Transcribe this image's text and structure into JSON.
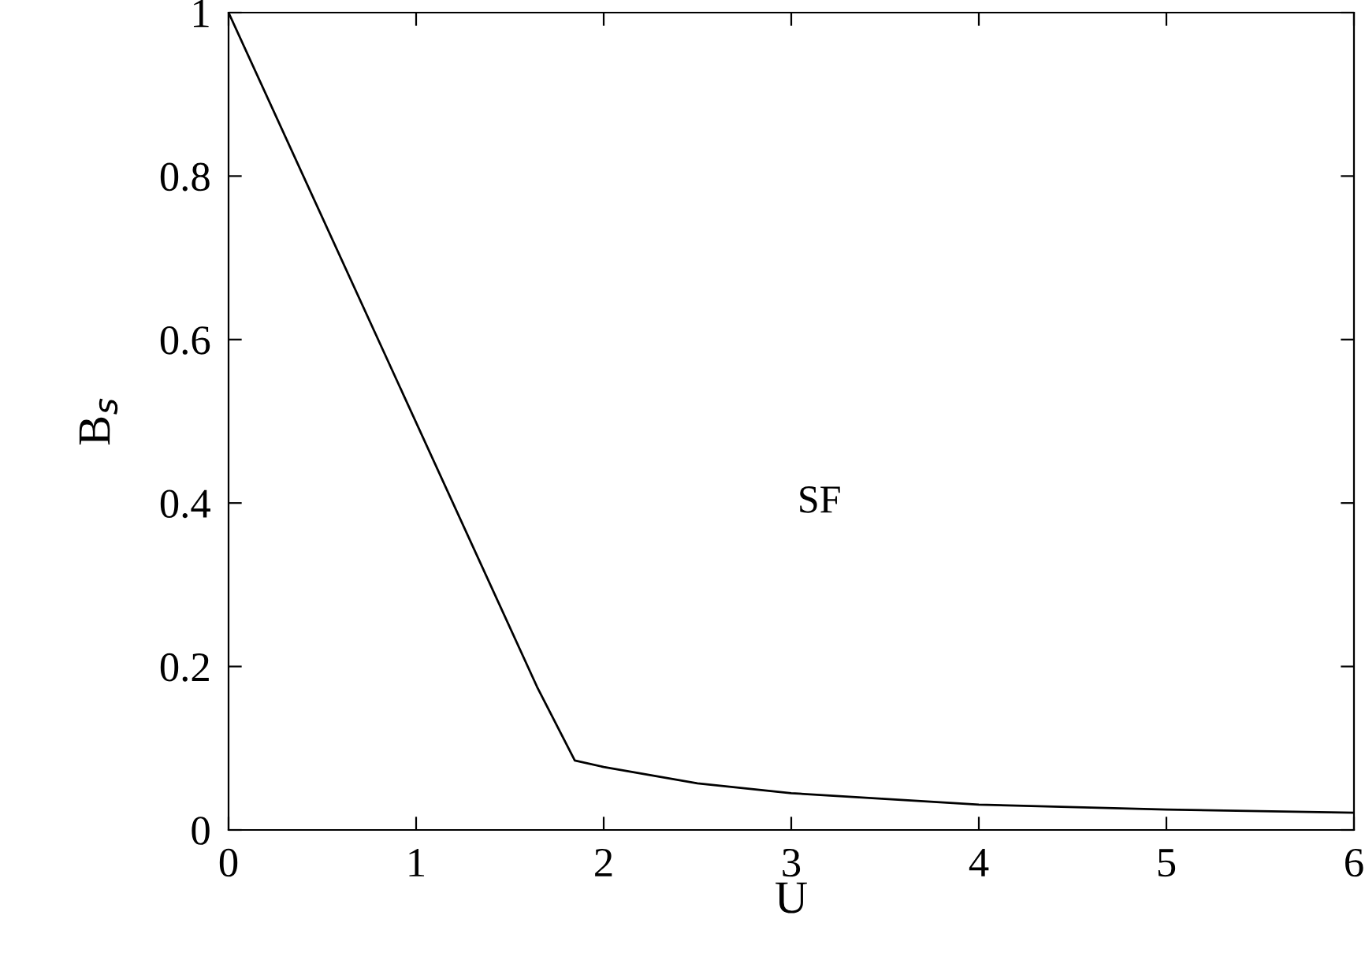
{
  "chart_data": {
    "type": "line",
    "xlabel": "U",
    "ylabel": "B$_{s}$",
    "annotations": [
      "SF"
    ],
    "series": [
      {
        "color": "#000000",
        "x": [
          0,
          1.645,
          1.846,
          2,
          2.5,
          3,
          3.5,
          4,
          5,
          6
        ],
        "values": [
          1,
          0.175,
          0.085,
          0.077,
          0.057,
          0.045,
          0.038,
          0.031,
          0.025,
          0.021
        ]
      }
    ],
    "xlim": [
      0,
      6
    ],
    "ylim": [
      0,
      1
    ],
    "xticks": [
      0,
      1,
      2,
      3,
      4,
      5,
      6
    ],
    "yticks": [
      0,
      0.2,
      0.4,
      0.6,
      0.8,
      1
    ],
    "grid": false,
    "legend": false,
    "marker": "none",
    "line_style": "solid"
  }
}
